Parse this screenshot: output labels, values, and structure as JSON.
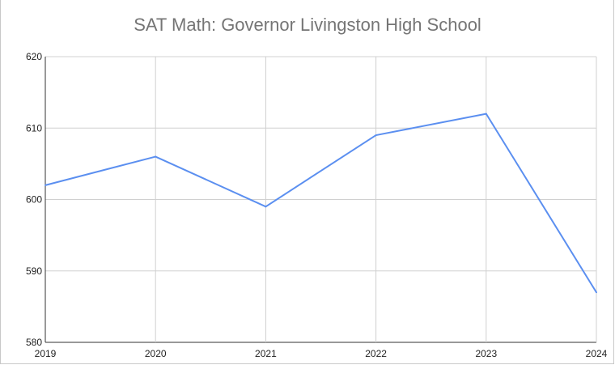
{
  "chart_data": {
    "type": "line",
    "title": "SAT Math: Governor Livingston High School",
    "xlabel": "",
    "ylabel": "",
    "x": [
      "2019",
      "2020",
      "2021",
      "2022",
      "2023",
      "2024"
    ],
    "series": [
      {
        "values": [
          602,
          606,
          599,
          609,
          612,
          587
        ]
      }
    ],
    "ylim": [
      580,
      620
    ],
    "yticks": [
      "580",
      "590",
      "600",
      "610",
      "620"
    ],
    "grid": true,
    "legend": "none",
    "colors": {
      "line": "#5b8ff0",
      "grid": "#d0d0d0",
      "title": "#757575"
    }
  }
}
